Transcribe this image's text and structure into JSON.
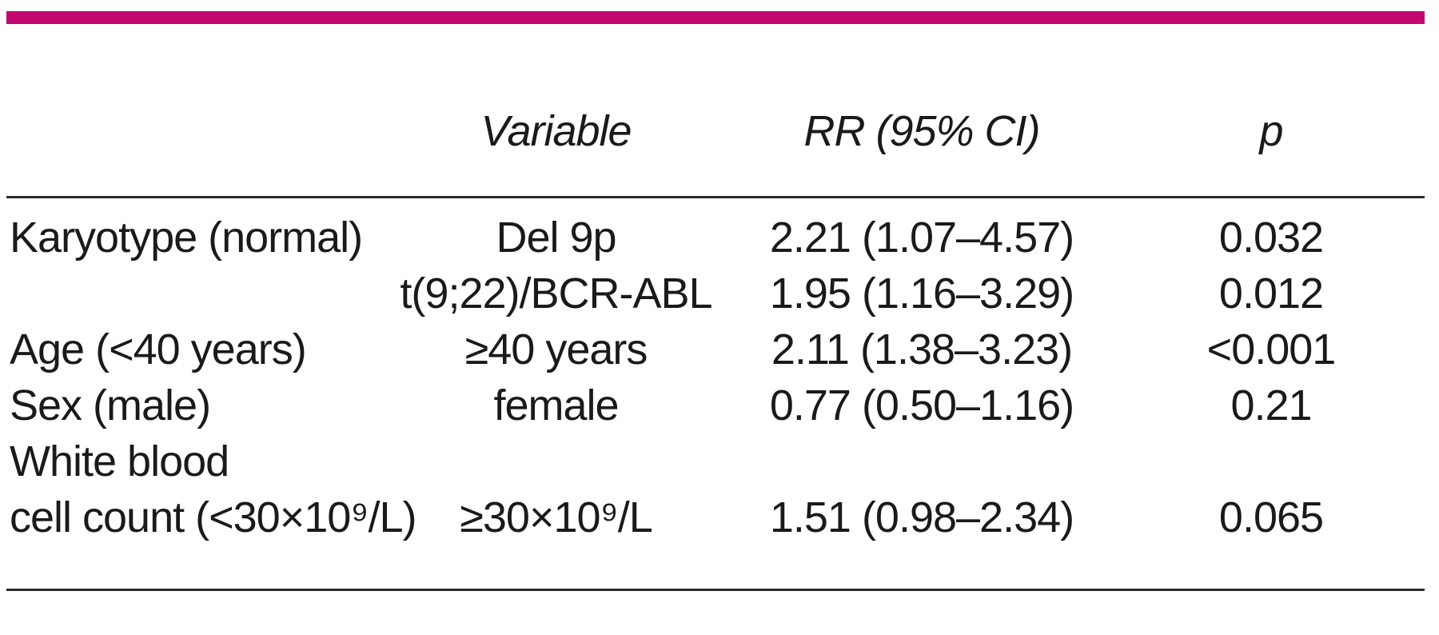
{
  "accent_color": "#c30570",
  "rule_color": "#2b2b2b",
  "table": {
    "headers": {
      "variable": "Variable",
      "rr": "RR (95% CI)",
      "p": "p"
    },
    "rows": [
      {
        "label": "Karyotype (normal)",
        "variable": "Del 9p",
        "rr": "2.21 (1.07–4.57)",
        "p": "0.032"
      },
      {
        "label": "",
        "variable": "t(9;22)/BCR-ABL",
        "rr": "1.95 (1.16–3.29)",
        "p": "0.012"
      },
      {
        "label": "Age (<40 years)",
        "variable": "≥40 years",
        "rr": "2.11 (1.38–3.23)",
        "p": "<0.001"
      },
      {
        "label": "Sex (male)",
        "variable": "female",
        "rr": "0.77 (0.50–1.16)",
        "p": "0.21"
      },
      {
        "label": "White blood",
        "variable": "",
        "rr": "",
        "p": ""
      },
      {
        "label": "cell count (<30×10⁹/L)",
        "variable": "≥30×10⁹/L",
        "rr": "1.51 (0.98–2.34)",
        "p": "0.065"
      }
    ]
  }
}
